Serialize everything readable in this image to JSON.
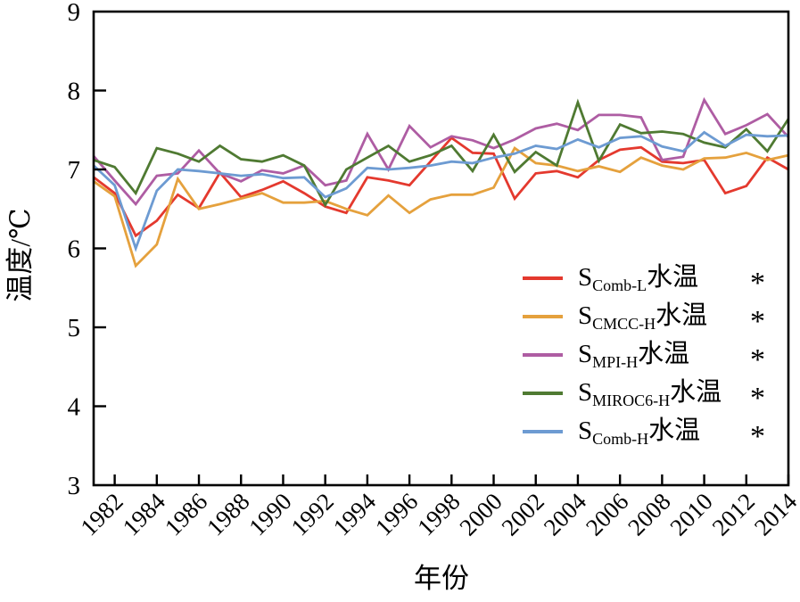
{
  "figure": {
    "background": "#ffffff",
    "axis_color": "#000000"
  },
  "chart_data": {
    "type": "line",
    "title": "",
    "xlabel": "年份",
    "ylabel": "温度/℃",
    "xlim": [
      1981,
      2014
    ],
    "ylim": [
      3,
      9
    ],
    "grid": false,
    "legend_position": "inside lower right",
    "y_ticks": [
      3,
      4,
      5,
      6,
      7,
      8,
      9
    ],
    "x_tick_labels": [
      1982,
      1984,
      1986,
      1988,
      1990,
      1992,
      1994,
      1996,
      1998,
      2000,
      2002,
      2004,
      2006,
      2008,
      2010,
      2012,
      2014
    ],
    "x": [
      1981,
      1982,
      1983,
      1984,
      1985,
      1986,
      1987,
      1988,
      1989,
      1990,
      1991,
      1992,
      1993,
      1994,
      1995,
      1996,
      1997,
      1998,
      1999,
      2000,
      2001,
      2002,
      2003,
      2004,
      2005,
      2006,
      2007,
      2008,
      2009,
      2010,
      2011,
      2012,
      2013,
      2014
    ],
    "series": [
      {
        "name": "S_Comb-L 水温",
        "label_prefix": "S",
        "label_sub": "Comb-L",
        "label_suffix": "水温",
        "marker": "*",
        "color": "#E4392E",
        "values": [
          6.9,
          6.7,
          6.16,
          6.35,
          6.68,
          6.51,
          6.96,
          6.65,
          6.74,
          6.85,
          6.7,
          6.53,
          6.45,
          6.9,
          6.86,
          6.8,
          7.1,
          7.4,
          7.21,
          7.2,
          6.63,
          6.95,
          6.98,
          6.9,
          7.12,
          7.25,
          7.28,
          7.1,
          7.08,
          7.12,
          6.7,
          6.79,
          7.15,
          7.0
        ]
      },
      {
        "name": "S_CMCC-H 水温",
        "label_prefix": "S",
        "label_sub": "CMCC-H",
        "label_suffix": "水温",
        "marker": "*",
        "color": "#E5A13D",
        "values": [
          6.85,
          6.66,
          5.78,
          6.05,
          6.88,
          6.5,
          6.56,
          6.63,
          6.7,
          6.58,
          6.58,
          6.6,
          6.5,
          6.42,
          6.67,
          6.45,
          6.62,
          6.68,
          6.68,
          6.77,
          7.27,
          7.08,
          7.05,
          6.98,
          7.04,
          6.97,
          7.15,
          7.05,
          7.0,
          7.14,
          7.15,
          7.21,
          7.12,
          7.18
        ]
      },
      {
        "name": "S_MPI-H 水温",
        "label_prefix": "S",
        "label_sub": "MPI-H",
        "label_suffix": "水温",
        "marker": "*",
        "color": "#AE5DA3",
        "values": [
          7.17,
          6.86,
          6.56,
          6.92,
          6.95,
          7.24,
          6.95,
          6.85,
          6.99,
          6.95,
          7.05,
          6.8,
          6.86,
          7.45,
          7.0,
          7.55,
          7.28,
          7.42,
          7.37,
          7.27,
          7.38,
          7.52,
          7.58,
          7.5,
          7.69,
          7.69,
          7.66,
          7.12,
          7.16,
          7.88,
          7.45,
          7.56,
          7.7,
          7.41
        ]
      },
      {
        "name": "S_MIROC6-H 水温",
        "label_prefix": "S",
        "label_sub": "MIROC6-H",
        "label_suffix": "水温",
        "marker": "*",
        "color": "#4F7A32",
        "values": [
          7.12,
          7.03,
          6.7,
          7.27,
          7.2,
          7.1,
          7.3,
          7.13,
          7.1,
          7.18,
          7.05,
          6.55,
          7.0,
          7.15,
          7.3,
          7.1,
          7.18,
          7.3,
          6.98,
          7.44,
          6.97,
          7.22,
          7.05,
          7.85,
          7.11,
          7.57,
          7.46,
          7.48,
          7.45,
          7.34,
          7.28,
          7.51,
          7.23,
          7.64
        ]
      },
      {
        "name": "S_Comb-H 水温",
        "label_prefix": "S",
        "label_sub": "Comb-H",
        "label_suffix": "水温",
        "marker": "*",
        "color": "#6D9BD2",
        "values": [
          7.05,
          6.8,
          6.0,
          6.73,
          7.0,
          6.98,
          6.95,
          6.92,
          6.94,
          6.89,
          6.9,
          6.65,
          6.76,
          7.02,
          7.0,
          7.02,
          7.05,
          7.1,
          7.08,
          7.15,
          7.2,
          7.3,
          7.26,
          7.38,
          7.28,
          7.4,
          7.42,
          7.29,
          7.23,
          7.47,
          7.3,
          7.44,
          7.42,
          7.43
        ]
      }
    ]
  }
}
